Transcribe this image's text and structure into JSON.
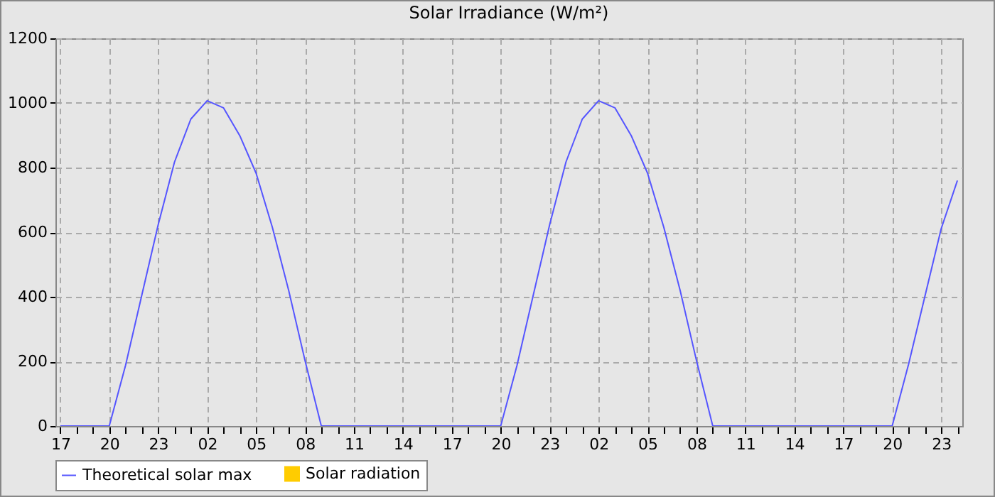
{
  "chart_data": {
    "type": "line",
    "title": "Solar Irradiance (W/m²)",
    "categories": [
      "17",
      null,
      null,
      "20",
      null,
      null,
      "23",
      null,
      null,
      "02",
      null,
      null,
      "05",
      null,
      null,
      "08",
      null,
      null,
      "11",
      null,
      null,
      "14",
      null,
      null,
      "17",
      null,
      null,
      "20",
      null,
      null,
      "23",
      null,
      null,
      "02",
      null,
      null,
      "05",
      null,
      null,
      "08",
      null,
      null,
      "11",
      null,
      null,
      "14",
      null,
      null,
      "17",
      null,
      null,
      "20",
      null,
      null,
      "23",
      null
    ],
    "ylim": [
      0,
      1200
    ],
    "yticks": [
      0,
      200,
      400,
      600,
      800,
      1000,
      1200
    ],
    "grid": true,
    "legend": "bottom",
    "series": [
      {
        "name": "Theoretical solar max",
        "color": "#5555ff",
        "values": [
          0,
          0,
          0,
          0,
          188,
          406,
          623,
          817,
          950,
          1007,
          985,
          899,
          783,
          615,
          420,
          203,
          0,
          0,
          0,
          0,
          0,
          0,
          0,
          0,
          0,
          0,
          0,
          0,
          188,
          406,
          623,
          817,
          950,
          1007,
          985,
          899,
          783,
          615,
          420,
          203,
          0,
          0,
          0,
          0,
          0,
          0,
          0,
          0,
          0,
          0,
          0,
          0,
          190,
          400,
          610,
          760
        ]
      },
      {
        "name": "Solar radiation",
        "type": "bar",
        "color": "#ffcc00",
        "values": [
          null,
          null,
          null,
          null,
          null,
          null,
          null,
          null,
          null,
          null,
          null,
          null,
          null,
          null,
          null,
          null,
          null,
          null,
          null,
          null,
          null,
          null,
          null,
          null,
          null,
          null,
          null,
          null,
          null,
          null,
          null,
          null,
          null,
          null,
          null,
          null,
          null,
          null,
          null,
          null,
          null,
          null,
          null,
          null,
          null,
          null,
          null,
          null,
          null,
          null,
          null,
          null,
          null,
          null,
          null,
          null
        ]
      }
    ]
  }
}
